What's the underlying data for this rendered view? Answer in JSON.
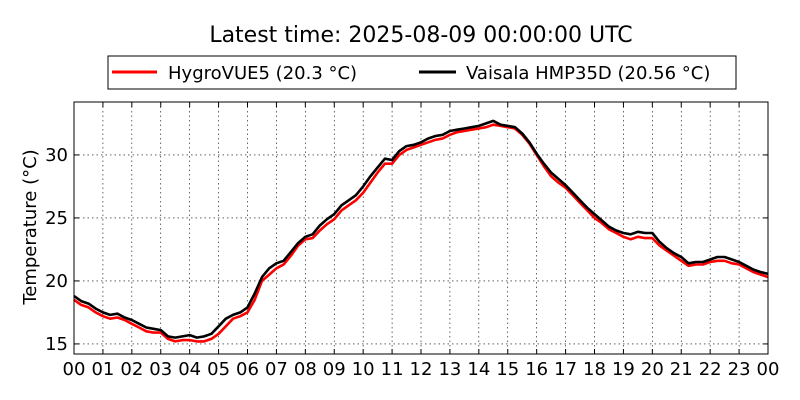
{
  "chart_data": {
    "type": "line",
    "title": "Latest time: 2025-08-09 00:00:00 UTC",
    "xlabel": "",
    "ylabel": "Temperature (°C)",
    "x_ticks": [
      "00",
      "01",
      "02",
      "03",
      "04",
      "05",
      "06",
      "07",
      "08",
      "09",
      "10",
      "11",
      "12",
      "13",
      "14",
      "15",
      "16",
      "17",
      "18",
      "19",
      "20",
      "21",
      "22",
      "23",
      "00"
    ],
    "xlim": [
      0,
      24
    ],
    "ylim": [
      14.2,
      34.2
    ],
    "y_ticks": [
      15,
      20,
      25,
      30
    ],
    "grid": true,
    "legend_placement": "top",
    "series": [
      {
        "name": "HygroVUE5 (20.3 °C)",
        "color": "#ff0000",
        "x": [
          0,
          0.25,
          0.5,
          0.75,
          1,
          1.25,
          1.5,
          1.75,
          2,
          2.25,
          2.5,
          2.75,
          3,
          3.25,
          3.5,
          3.75,
          4,
          4.25,
          4.5,
          4.75,
          5,
          5.25,
          5.5,
          5.75,
          6,
          6.25,
          6.5,
          6.75,
          7,
          7.25,
          7.5,
          7.75,
          8,
          8.25,
          8.5,
          8.75,
          9,
          9.25,
          9.5,
          9.75,
          10,
          10.25,
          10.5,
          10.75,
          11,
          11.25,
          11.5,
          11.75,
          12,
          12.25,
          12.5,
          12.75,
          13,
          13.25,
          13.5,
          13.75,
          14,
          14.25,
          14.5,
          14.75,
          15,
          15.25,
          15.5,
          15.75,
          16,
          16.25,
          16.5,
          16.75,
          17,
          17.25,
          17.5,
          17.75,
          18,
          18.25,
          18.5,
          18.75,
          19,
          19.25,
          19.5,
          19.75,
          20,
          20.25,
          20.5,
          20.75,
          21,
          21.25,
          21.5,
          21.75,
          22,
          22.25,
          22.5,
          22.75,
          23,
          23.25,
          23.5,
          23.75,
          24
        ],
        "values": [
          18.5,
          18.1,
          17.9,
          17.5,
          17.2,
          17.0,
          17.1,
          16.9,
          16.6,
          16.3,
          16.0,
          15.9,
          15.9,
          15.4,
          15.2,
          15.3,
          15.3,
          15.2,
          15.2,
          15.4,
          15.8,
          16.4,
          17.0,
          17.2,
          17.5,
          18.5,
          20.0,
          20.5,
          21.0,
          21.3,
          22.0,
          22.8,
          23.3,
          23.4,
          24.0,
          24.5,
          24.9,
          25.6,
          26.0,
          26.4,
          27.0,
          27.8,
          28.6,
          29.3,
          29.3,
          30.0,
          30.4,
          30.6,
          30.8,
          31.0,
          31.2,
          31.3,
          31.6,
          31.8,
          31.9,
          32.0,
          32.1,
          32.2,
          32.4,
          32.3,
          32.2,
          32.1,
          31.6,
          30.9,
          30.0,
          29.1,
          28.3,
          27.8,
          27.4,
          26.8,
          26.2,
          25.6,
          25.0,
          24.6,
          24.1,
          23.8,
          23.5,
          23.3,
          23.5,
          23.4,
          23.4,
          22.8,
          22.4,
          22.0,
          21.6,
          21.2,
          21.3,
          21.3,
          21.5,
          21.6,
          21.6,
          21.4,
          21.3,
          21.0,
          20.7,
          20.5,
          20.3
        ]
      },
      {
        "name": "Vaisala HMP35D (20.56 °C)",
        "color": "#000000",
        "x": [
          0,
          0.25,
          0.5,
          0.75,
          1,
          1.25,
          1.5,
          1.75,
          2,
          2.25,
          2.5,
          2.75,
          3,
          3.25,
          3.5,
          3.75,
          4,
          4.25,
          4.5,
          4.75,
          5,
          5.25,
          5.5,
          5.75,
          6,
          6.25,
          6.5,
          6.75,
          7,
          7.25,
          7.5,
          7.75,
          8,
          8.25,
          8.5,
          8.75,
          9,
          9.25,
          9.5,
          9.75,
          10,
          10.25,
          10.5,
          10.75,
          11,
          11.25,
          11.5,
          11.75,
          12,
          12.25,
          12.5,
          12.75,
          13,
          13.25,
          13.5,
          13.75,
          14,
          14.25,
          14.5,
          14.75,
          15,
          15.25,
          15.5,
          15.75,
          16,
          16.25,
          16.5,
          16.75,
          17,
          17.25,
          17.5,
          17.75,
          18,
          18.25,
          18.5,
          18.75,
          19,
          19.25,
          19.5,
          19.75,
          20,
          20.25,
          20.5,
          20.75,
          21,
          21.25,
          21.5,
          21.75,
          22,
          22.25,
          22.5,
          22.75,
          23,
          23.25,
          23.5,
          23.75,
          24
        ],
        "values": [
          18.8,
          18.4,
          18.2,
          17.8,
          17.5,
          17.3,
          17.4,
          17.1,
          16.9,
          16.6,
          16.3,
          16.2,
          16.1,
          15.6,
          15.5,
          15.6,
          15.7,
          15.5,
          15.6,
          15.8,
          16.4,
          17.0,
          17.3,
          17.5,
          17.9,
          19.0,
          20.3,
          21.0,
          21.4,
          21.6,
          22.3,
          23.0,
          23.5,
          23.7,
          24.4,
          24.9,
          25.3,
          26.0,
          26.4,
          26.8,
          27.5,
          28.3,
          29.0,
          29.7,
          29.6,
          30.3,
          30.7,
          30.8,
          31.0,
          31.3,
          31.5,
          31.6,
          31.9,
          32.0,
          32.1,
          32.2,
          32.3,
          32.5,
          32.7,
          32.4,
          32.3,
          32.2,
          31.7,
          31.0,
          30.1,
          29.3,
          28.6,
          28.1,
          27.6,
          27.0,
          26.4,
          25.8,
          25.3,
          24.8,
          24.3,
          24.0,
          23.8,
          23.7,
          23.9,
          23.8,
          23.8,
          23.1,
          22.6,
          22.2,
          21.9,
          21.4,
          21.5,
          21.5,
          21.7,
          21.9,
          21.9,
          21.7,
          21.5,
          21.2,
          20.9,
          20.7,
          20.56
        ]
      }
    ]
  }
}
